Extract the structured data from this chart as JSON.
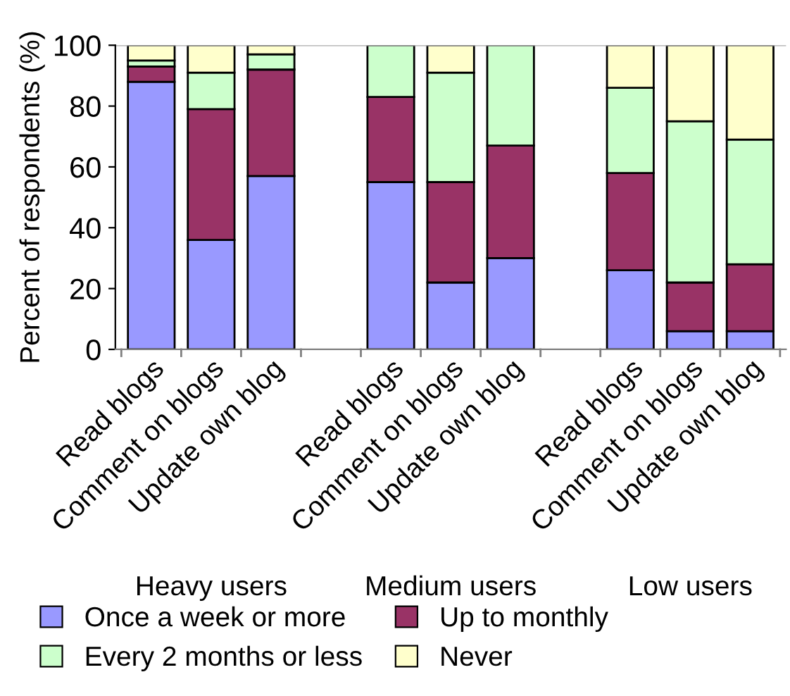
{
  "chart_data": {
    "type": "bar",
    "stacked": true,
    "ylabel": "Percent of respondents (%)",
    "categories": [
      "Read blogs",
      "Comment on blogs",
      "Update own blog",
      null,
      "Read blogs",
      "Comment on blogs",
      "Update own blog",
      null,
      "Read blogs",
      "Comment on blogs",
      "Update own blog"
    ],
    "series": [
      {
        "name": "Once a week or more",
        "color": "#9999ff",
        "values": [
          88,
          36,
          57,
          null,
          55,
          22,
          30,
          null,
          26,
          6,
          6
        ]
      },
      {
        "name": "Up to monthly",
        "color": "#993366",
        "values": [
          5,
          43,
          35,
          null,
          28,
          33,
          37,
          null,
          32,
          16,
          22
        ]
      },
      {
        "name": "Every 2 months or less",
        "color": "#ccffcc",
        "values": [
          2,
          12,
          5,
          null,
          17,
          36,
          33,
          null,
          28,
          53,
          41
        ]
      },
      {
        "name": "Never",
        "color": "#ffffcc",
        "values": [
          5,
          9,
          3,
          null,
          null,
          9,
          null,
          null,
          14,
          25,
          31
        ]
      }
    ],
    "annotations": [
      "Heavy users",
      "Medium users",
      "Low users"
    ],
    "ylim": [
      0,
      100
    ],
    "yticks": [
      0,
      20,
      40,
      60,
      80,
      100
    ],
    "grid": false,
    "legend": "bottom"
  }
}
